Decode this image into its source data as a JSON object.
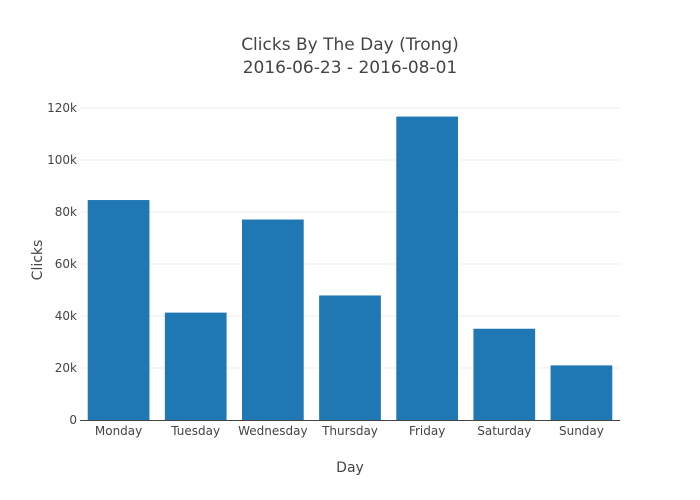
{
  "chart_data": {
    "type": "bar",
    "title": "Clicks By The Day (Trong)",
    "subtitle": "2016-06-23 - 2016-08-01",
    "xlabel": "Day",
    "ylabel": "Clicks",
    "categories": [
      "Monday",
      "Tuesday",
      "Wednesday",
      "Thursday",
      "Friday",
      "Saturday",
      "Sunday"
    ],
    "values": [
      84600,
      41300,
      77100,
      47900,
      116700,
      35100,
      21000
    ],
    "ylim": [
      0,
      120000
    ],
    "yticks": [
      0,
      20000,
      40000,
      60000,
      80000,
      100000,
      120000
    ],
    "ytick_labels": [
      "0",
      "20k",
      "40k",
      "60k",
      "80k",
      "100k",
      "120k"
    ],
    "grid": true,
    "legend": "none",
    "bar_color": "#1f77b4",
    "grid_color": "#eeeeee",
    "axis_color": "#444444"
  }
}
